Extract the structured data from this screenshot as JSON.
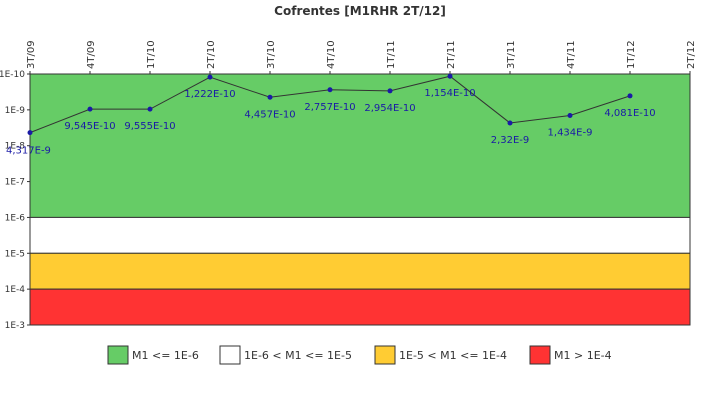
{
  "chart_data": {
    "type": "line",
    "title": "Cofrentes [M1RHR 2T/12]",
    "y_scale": "log",
    "y_inverted": true,
    "y_range": [
      1e-10,
      0.001
    ],
    "y_ticks": [
      "1E-10",
      "1E-9",
      "1E-8",
      "1E-7",
      "1E-6",
      "1E-5",
      "1E-4",
      "1E-3"
    ],
    "x_ticks": [
      "3T/09",
      "4T/09",
      "1T/10",
      "2T/10",
      "3T/10",
      "4T/10",
      "1T/11",
      "2T/11",
      "3T/11",
      "4T/11",
      "1T/12",
      "2T/12"
    ],
    "series": [
      {
        "points": [
          {
            "x": "3T/09",
            "y": 4.317e-09,
            "label": "4,317E-9"
          },
          {
            "x": "4T/09",
            "y": 9.545e-10,
            "label": "9,545E-10"
          },
          {
            "x": "1T/10",
            "y": 9.555e-10,
            "label": "9,555E-10"
          },
          {
            "x": "2T/10",
            "y": 1.222e-10,
            "label": "1,222E-10"
          },
          {
            "x": "3T/10",
            "y": 4.457e-10,
            "label": "4,457E-10"
          },
          {
            "x": "4T/10",
            "y": 2.757e-10,
            "label": "2,757E-10"
          },
          {
            "x": "1T/11",
            "y": 2.954e-10,
            "label": "2,954E-10"
          },
          {
            "x": "2T/11",
            "y": 1.154e-10,
            "label": "1,154E-10"
          },
          {
            "x": "3T/11",
            "y": 2.32e-09,
            "label": "2,32E-9"
          },
          {
            "x": "4T/11",
            "y": 1.434e-09,
            "label": "1,434E-9"
          },
          {
            "x": "1T/12",
            "y": 4.081e-10,
            "label": "4,081E-10"
          }
        ]
      }
    ],
    "bands": [
      {
        "label": "M1 <= 1E-6",
        "from": 1e-10,
        "to": 1e-06,
        "color": "#66cc66"
      },
      {
        "label": "1E-6 < M1 <= 1E-5",
        "from": 1e-06,
        "to": 1e-05,
        "color": "#ffffff"
      },
      {
        "label": "1E-5 < M1 <= 1E-4",
        "from": 1e-05,
        "to": 0.0001,
        "color": "#ffcc33"
      },
      {
        "label": "M1 > 1E-4",
        "from": 0.0001,
        "to": 0.001,
        "color": "#ff3333"
      }
    ],
    "line_color": "#333333",
    "point_color": "#1a1aa6",
    "legend_position": "bottom"
  }
}
